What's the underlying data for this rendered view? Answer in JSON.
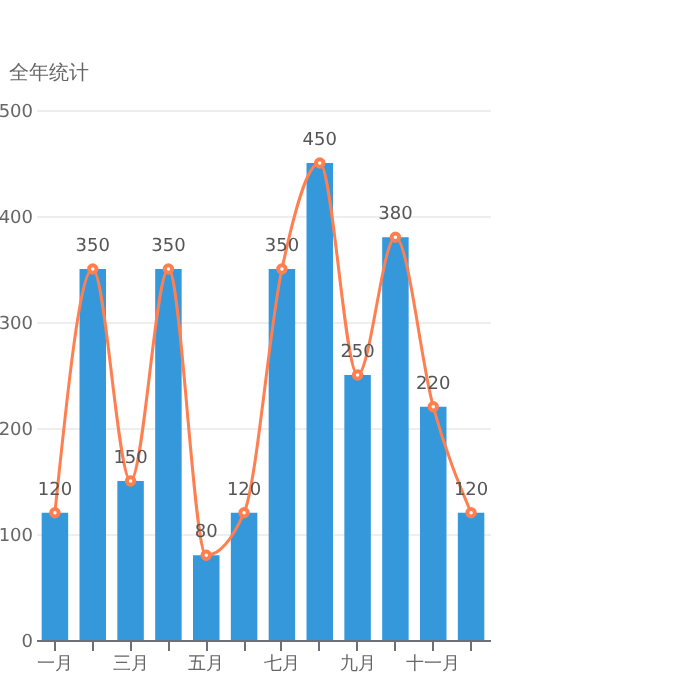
{
  "chart_data": {
    "type": "bar",
    "ylabel": "全年统计",
    "categories": [
      "一月",
      null,
      "三月",
      null,
      "五月",
      null,
      "七月",
      null,
      "九月",
      null,
      "十一月",
      null
    ],
    "series": [
      {
        "color": "#3498db",
        "values": [
          120,
          350,
          150,
          350,
          80,
          120,
          350,
          450,
          250,
          380,
          220,
          120
        ],
        "value_labels": [
          "120",
          "350",
          "150",
          "350",
          "80",
          "120",
          "350",
          "450",
          "250",
          "380",
          "220",
          "120"
        ]
      },
      {
        "type": "line",
        "color": "#ff7f50",
        "values": [
          120,
          350,
          150,
          350,
          80,
          120,
          350,
          450,
          250,
          380,
          220,
          120
        ]
      }
    ],
    "ylim": [
      0,
      500
    ],
    "yticks": [
      0,
      100,
      200,
      300,
      400,
      500
    ],
    "grid": "y",
    "marker": "circle"
  }
}
